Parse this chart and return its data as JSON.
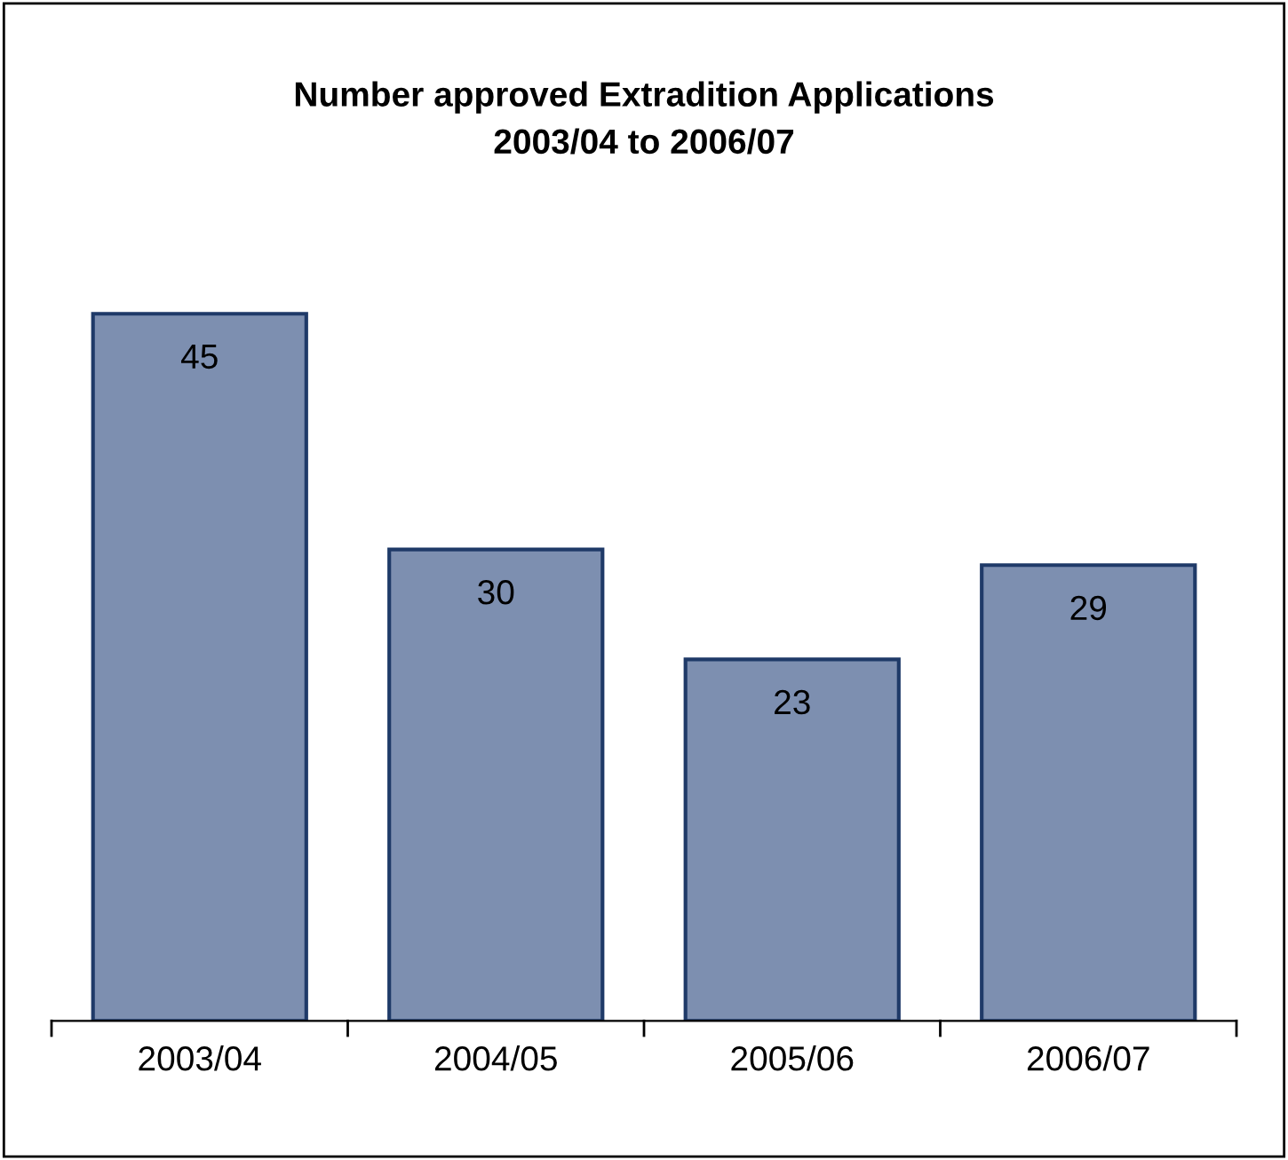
{
  "chart_data": {
    "type": "bar",
    "title": "Number approved Extradition Applications\n2003/04 to 2006/07",
    "categories": [
      "2003/04",
      "2004/05",
      "2005/06",
      "2006/07"
    ],
    "values": [
      45,
      30,
      23,
      29
    ],
    "color": "#7d8fb0",
    "data_labels": true,
    "grid": false,
    "legend": false
  }
}
